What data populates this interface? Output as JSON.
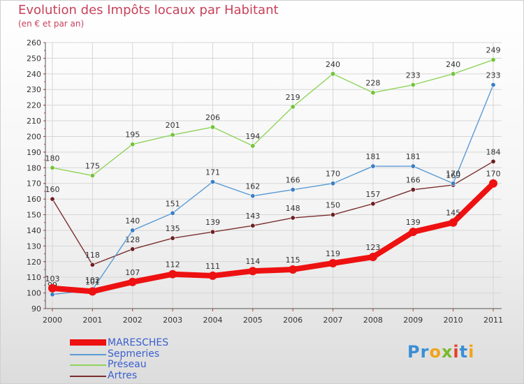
{
  "title": "Evolution des Impôts locaux par Habitant",
  "subtitle": "(en € et par an)",
  "logo_text": "Proxiti",
  "chart_data": {
    "type": "line",
    "title": "Evolution des Impôts locaux par Habitant",
    "subtitle": "(en € et par an)",
    "xlabel": "",
    "ylabel": "",
    "ylim": [
      90,
      260
    ],
    "ytick_step": 10,
    "categories": [
      "2000",
      "2001",
      "2002",
      "2003",
      "2004",
      "2005",
      "2006",
      "2007",
      "2008",
      "2009",
      "2010",
      "2011"
    ],
    "legend_position": "bottom-left",
    "series": [
      {
        "name": "Préseau",
        "color": "#8fd45a",
        "marker": "#72c43a",
        "values": [
          180,
          175,
          195,
          201,
          206,
          194,
          219,
          240,
          228,
          233,
          240,
          249
        ]
      },
      {
        "name": "Artres",
        "color": "#7a2e2e",
        "marker": "#6e1f1f",
        "values": [
          160,
          118,
          128,
          135,
          139,
          143,
          148,
          150,
          157,
          166,
          169,
          184
        ]
      },
      {
        "name": "Sepmeries",
        "color": "#5b9bd5",
        "marker": "#3a7fc4",
        "values": [
          99,
          102,
          140,
          151,
          171,
          162,
          166,
          170,
          181,
          181,
          170,
          233
        ]
      },
      {
        "name": "MARESCHES",
        "color": "#ee1111",
        "marker": "#ee1111",
        "values": [
          103,
          101,
          107,
          112,
          111,
          114,
          115,
          119,
          123,
          139,
          145,
          170
        ]
      }
    ],
    "legend_order": [
      "MARESCHES",
      "Sepmeries",
      "Préseau",
      "Artres"
    ],
    "legend_colors": {
      "MARESCHES": "#3a5fcd",
      "Sepmeries": "#3a5fcd",
      "Préseau": "#3a5fcd",
      "Artres": "#3a5fcd"
    }
  }
}
